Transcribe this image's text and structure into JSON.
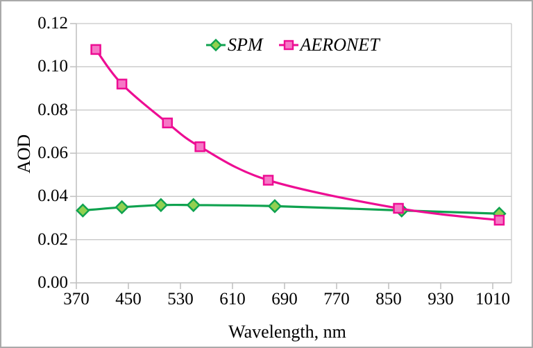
{
  "chart_data": {
    "type": "line",
    "xlabel": "Wavelength, nm",
    "ylabel": "AOD",
    "x_ticks": [
      370,
      450,
      530,
      610,
      690,
      770,
      850,
      930,
      1010
    ],
    "y_ticks": [
      "0.00",
      "0.02",
      "0.04",
      "0.06",
      "0.08",
      "0.10",
      "0.12"
    ],
    "y_tick_values": [
      0,
      0.02,
      0.04,
      0.06,
      0.08,
      0.1,
      0.12
    ],
    "xlim": [
      370,
      1039
    ],
    "ylim": [
      0,
      0.12
    ],
    "grid": "horizontal-gridlines",
    "legend_position": "top-center-inside",
    "series": [
      {
        "name": "SPM",
        "marker": "diamond",
        "line_color": "#0fa24f",
        "marker_fill": "#92d050",
        "x": [
          380,
          440,
          500,
          550,
          675,
          870,
          1020
        ],
        "y": [
          0.0335,
          0.035,
          0.036,
          0.036,
          0.0355,
          0.0335,
          0.032
        ]
      },
      {
        "name": "AERONET",
        "marker": "square",
        "line_color": "#ed0d93",
        "marker_fill": "#f678c6",
        "x": [
          400,
          440,
          510,
          560,
          665,
          865,
          1020
        ],
        "y": [
          0.108,
          0.092,
          0.074,
          0.063,
          0.0475,
          0.0345,
          0.029
        ]
      }
    ],
    "colors": {
      "gridline": "#c8c8c8",
      "axis_line": "#c2c2c2",
      "text": "#000000"
    }
  }
}
